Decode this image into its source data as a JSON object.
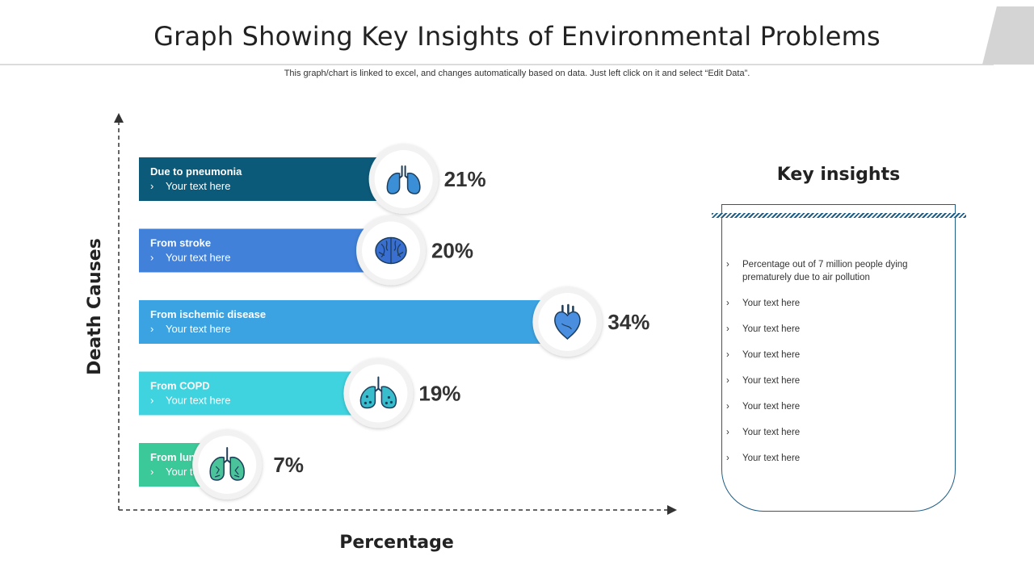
{
  "header": {
    "title": "Graph Showing Key Insights of Environmental Problems",
    "subtitle": "This graph/chart is linked to excel, and changes automatically based on data. Just left click on it and select “Edit Data”."
  },
  "chart_data": {
    "type": "bar",
    "orientation": "horizontal",
    "xlabel": "Percentage",
    "ylabel": "Death Causes",
    "xlim": [
      0,
      40
    ],
    "categories": [
      "Due to pneumonia",
      "From stroke",
      "From ischemic disease",
      "From COPD",
      "From lung cancer"
    ],
    "values": [
      21,
      20,
      34,
      19,
      7
    ],
    "value_labels": [
      "21%",
      "20%",
      "34%",
      "19%",
      "7%"
    ],
    "sub_labels": [
      "Your text here",
      "Your text here",
      "Your text here",
      "Your text here",
      "Your text here"
    ],
    "icons": [
      "lungs-icon",
      "brain-icon",
      "heart-icon",
      "copd-lungs-icon",
      "cancer-lungs-icon"
    ],
    "colors": [
      "#0b5a7a",
      "#4181d9",
      "#3ca3e2",
      "#3ed3df",
      "#3cc99a"
    ]
  },
  "insights": {
    "title": "Key insights",
    "items": [
      "Percentage out of 7 million people dying prematurely due to air pollution",
      "Your text here",
      "Your text here",
      "Your text here",
      "Your text here",
      "Your text here",
      "Your text here",
      "Your text here"
    ]
  }
}
